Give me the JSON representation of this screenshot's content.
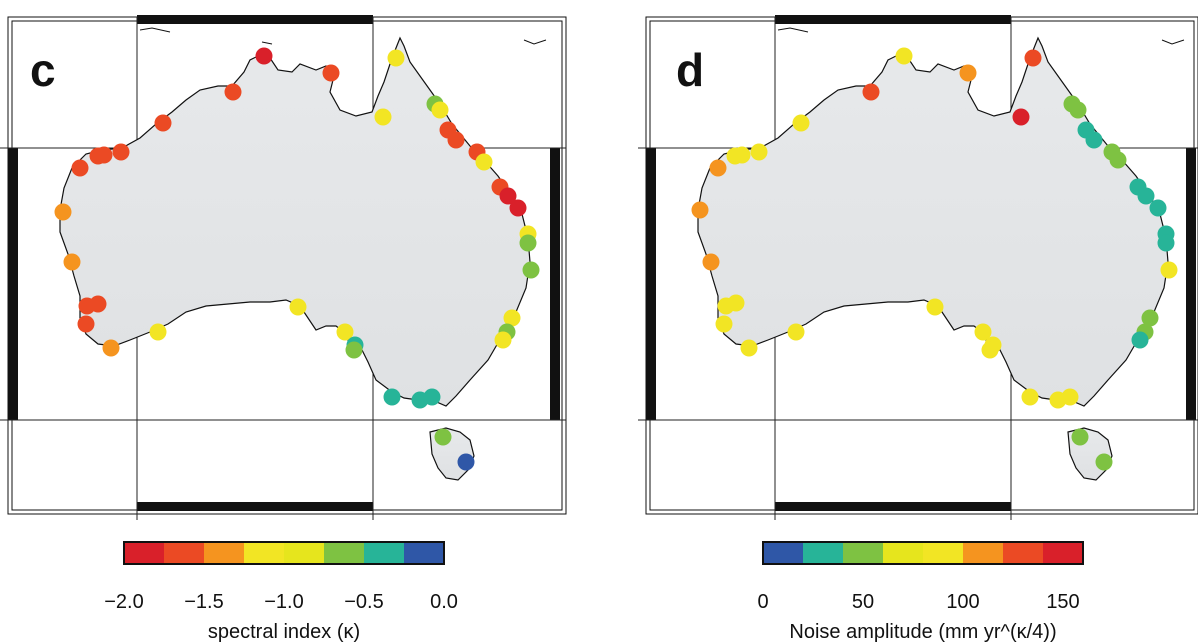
{
  "panel_c": {
    "letter": "c",
    "colorbar": {
      "ticks": [
        "−2.0",
        "−1.5",
        "−1.0",
        "−0.5",
        "0.0"
      ],
      "label": "spectral index (κ)",
      "colors": [
        "#d9202a",
        "#eb4a24",
        "#f5941f",
        "#f2e524",
        "#e6e51d",
        "#7ec242",
        "#27b498",
        "#2f57a7"
      ]
    }
  },
  "panel_d": {
    "letter": "d",
    "colorbar": {
      "ticks": [
        "0",
        "50",
        "100",
        "150"
      ],
      "label": "Noise amplitude (mm yr^(κ/4))",
      "colors": [
        "#2f57a7",
        "#27b498",
        "#7ec242",
        "#e6e51d",
        "#f2e524",
        "#f5941f",
        "#eb4a24",
        "#d9202a"
      ]
    }
  },
  "colors": {
    "land": "#e3e5e7",
    "frame": "#111111"
  }
}
